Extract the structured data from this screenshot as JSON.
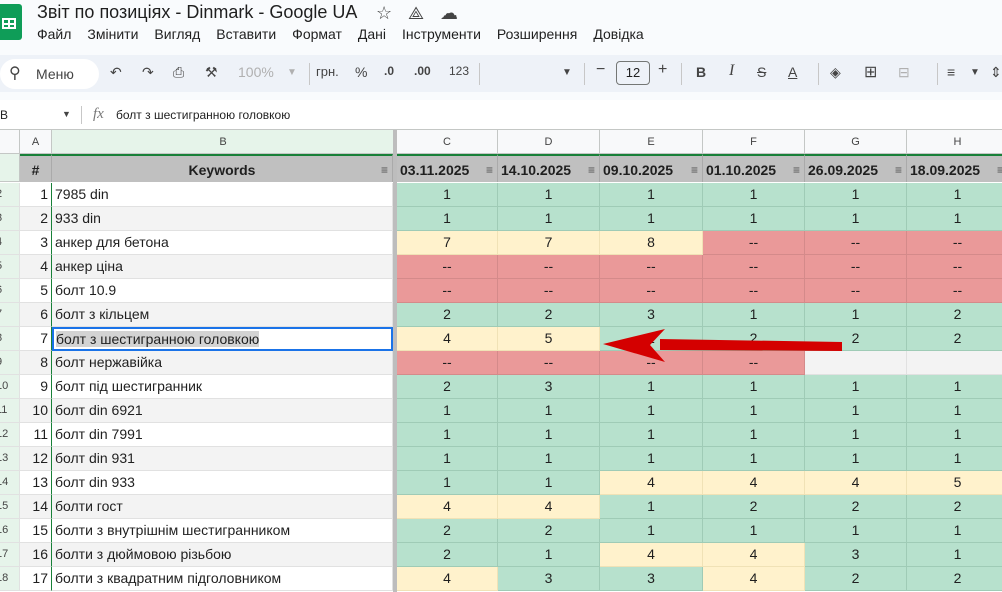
{
  "title": "Звіт по позиціях - Dinmark - Google UA",
  "menu": [
    "Файл",
    "Змінити",
    "Вигляд",
    "Вставити",
    "Формат",
    "Дані",
    "Інструменти",
    "Розширення",
    "Довідка"
  ],
  "toolbar": {
    "search": "Меню",
    "zoom": "100%",
    "currency": "грн.",
    "percent": "%",
    "dec_less": ".0",
    "dec_more": ".00",
    "format": "123",
    "font_size": "12",
    "bold": "B",
    "italic": "I"
  },
  "formula_bar": {
    "cell_ref": "B",
    "fx": "fx",
    "value": "болт з шестигранною головкою"
  },
  "columns": [
    "A",
    "B",
    "C",
    "D",
    "E",
    "F",
    "G",
    "H"
  ],
  "header": {
    "num": "#",
    "keywords": "Keywords",
    "dates": [
      "03.11.2025",
      "14.10.2025",
      "09.10.2025",
      "01.10.2025",
      "26.09.2025",
      "18.09.2025"
    ]
  },
  "colors": {
    "green": "#b7e1cd",
    "yellow": "#fff2cc",
    "red": "#ea9999",
    "blank": "#f3f3f3",
    "selection": "#1a73e8",
    "arrow": "#d40000"
  },
  "rows": [
    {
      "sheet_row": "2",
      "n": "1",
      "kw": "7985 din",
      "v": [
        "1",
        "1",
        "1",
        "1",
        "1",
        "1"
      ]
    },
    {
      "sheet_row": "3",
      "n": "2",
      "kw": "933 din",
      "v": [
        "1",
        "1",
        "1",
        "1",
        "1",
        "1"
      ]
    },
    {
      "sheet_row": "4",
      "n": "3",
      "kw": "анкер для бетона",
      "v": [
        "7",
        "7",
        "8",
        "--",
        "--",
        "--"
      ]
    },
    {
      "sheet_row": "5",
      "n": "4",
      "kw": "анкер ціна",
      "v": [
        "--",
        "--",
        "--",
        "--",
        "--",
        "--"
      ]
    },
    {
      "sheet_row": "6",
      "n": "5",
      "kw": "болт 10.9",
      "v": [
        "--",
        "--",
        "--",
        "--",
        "--",
        "--"
      ]
    },
    {
      "sheet_row": "7",
      "n": "6",
      "kw": "болт з кільцем",
      "v": [
        "2",
        "2",
        "3",
        "1",
        "1",
        "2"
      ]
    },
    {
      "sheet_row": "8",
      "n": "7",
      "kw": "болт з шестигранною головкою",
      "v": [
        "4",
        "5",
        "2",
        "2",
        "2",
        "2"
      ],
      "selected": true
    },
    {
      "sheet_row": "9",
      "n": "8",
      "kw": "болт нержавійка",
      "v": [
        "--",
        "--",
        "--",
        "--",
        "",
        ""
      ]
    },
    {
      "sheet_row": "10",
      "n": "9",
      "kw": "болт під шестигранник",
      "v": [
        "2",
        "3",
        "1",
        "1",
        "1",
        "1"
      ]
    },
    {
      "sheet_row": "11",
      "n": "10",
      "kw": "болт din 6921",
      "v": [
        "1",
        "1",
        "1",
        "1",
        "1",
        "1"
      ]
    },
    {
      "sheet_row": "12",
      "n": "11",
      "kw": "болт din 7991",
      "v": [
        "1",
        "1",
        "1",
        "1",
        "1",
        "1"
      ]
    },
    {
      "sheet_row": "13",
      "n": "12",
      "kw": "болт din 931",
      "v": [
        "1",
        "1",
        "1",
        "1",
        "1",
        "1"
      ]
    },
    {
      "sheet_row": "14",
      "n": "13",
      "kw": "болт din 933",
      "v": [
        "1",
        "1",
        "4",
        "4",
        "4",
        "5"
      ]
    },
    {
      "sheet_row": "15",
      "n": "14",
      "kw": "болти гост",
      "v": [
        "4",
        "4",
        "1",
        "2",
        "2",
        "2"
      ]
    },
    {
      "sheet_row": "16",
      "n": "15",
      "kw": "болти з внутрішнім шестигранником",
      "v": [
        "2",
        "2",
        "1",
        "1",
        "1",
        "1"
      ]
    },
    {
      "sheet_row": "17",
      "n": "16",
      "kw": "болти з дюймовою різьбою",
      "v": [
        "2",
        "1",
        "4",
        "4",
        "3",
        "1"
      ]
    },
    {
      "sheet_row": "18",
      "n": "17",
      "kw": "болти з квадратним підголовником",
      "v": [
        "4",
        "3",
        "3",
        "4",
        "2",
        "2"
      ]
    }
  ]
}
